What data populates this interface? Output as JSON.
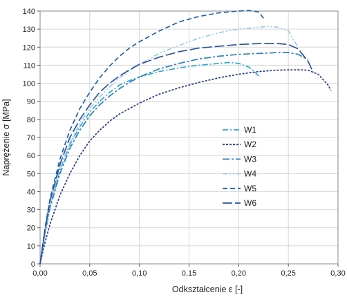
{
  "chart_data": {
    "type": "line",
    "xlabel": "Odkształcenie ε [-]",
    "ylabel": "Naprężenie σ [MPa]",
    "xlim": [
      0,
      0.3
    ],
    "ylim": [
      0,
      140
    ],
    "x_ticks": [
      "0,00",
      "0,05",
      "0,10",
      "0,15",
      "0,20",
      "0,25",
      "0,30"
    ],
    "y_ticks": [
      "0",
      "10",
      "20",
      "30",
      "40",
      "50",
      "60",
      "70",
      "80",
      "90",
      "100",
      "110",
      "120",
      "130",
      "140"
    ],
    "grid": true,
    "legend_position": "center-right",
    "series": [
      {
        "name": "W1",
        "color": "#29A9D6",
        "dash": "8,3,2,3",
        "points": [
          [
            0,
            0
          ],
          [
            0.005,
            18
          ],
          [
            0.01,
            32
          ],
          [
            0.02,
            52
          ],
          [
            0.03,
            66
          ],
          [
            0.04,
            76
          ],
          [
            0.05,
            84
          ],
          [
            0.06,
            90
          ],
          [
            0.07,
            95
          ],
          [
            0.08,
            99
          ],
          [
            0.09,
            101.5
          ],
          [
            0.1,
            103.5
          ],
          [
            0.12,
            106.5
          ],
          [
            0.14,
            108.5
          ],
          [
            0.16,
            110
          ],
          [
            0.18,
            111
          ],
          [
            0.19,
            111.5
          ],
          [
            0.2,
            111
          ],
          [
            0.21,
            109
          ],
          [
            0.215,
            107
          ],
          [
            0.22,
            104
          ]
        ]
      },
      {
        "name": "W2",
        "color": "#283A8C",
        "dash": "3,2",
        "points": [
          [
            0,
            0
          ],
          [
            0.005,
            12
          ],
          [
            0.01,
            22
          ],
          [
            0.02,
            38
          ],
          [
            0.03,
            50
          ],
          [
            0.04,
            60
          ],
          [
            0.05,
            68
          ],
          [
            0.06,
            74
          ],
          [
            0.07,
            79
          ],
          [
            0.08,
            83
          ],
          [
            0.09,
            86
          ],
          [
            0.1,
            89
          ],
          [
            0.12,
            94
          ],
          [
            0.14,
            97.5
          ],
          [
            0.16,
            100.5
          ],
          [
            0.18,
            103
          ],
          [
            0.2,
            105
          ],
          [
            0.22,
            106.5
          ],
          [
            0.24,
            107.3
          ],
          [
            0.26,
            107.5
          ],
          [
            0.27,
            107.2
          ],
          [
            0.28,
            105
          ],
          [
            0.29,
            99
          ],
          [
            0.293,
            96
          ]
        ]
      },
      {
        "name": "W3",
        "color": "#2E7FC0",
        "dash": "10,3,3,3",
        "points": [
          [
            0,
            0
          ],
          [
            0.005,
            17
          ],
          [
            0.01,
            31
          ],
          [
            0.02,
            50
          ],
          [
            0.03,
            64
          ],
          [
            0.04,
            74
          ],
          [
            0.05,
            82
          ],
          [
            0.06,
            88
          ],
          [
            0.07,
            93
          ],
          [
            0.08,
            97
          ],
          [
            0.09,
            100.5
          ],
          [
            0.1,
            103.5
          ],
          [
            0.12,
            108
          ],
          [
            0.14,
            111
          ],
          [
            0.16,
            113.5
          ],
          [
            0.18,
            115
          ],
          [
            0.2,
            116
          ],
          [
            0.22,
            116.5
          ],
          [
            0.24,
            117
          ],
          [
            0.25,
            117
          ],
          [
            0.26,
            116
          ],
          [
            0.27,
            113
          ]
        ]
      },
      {
        "name": "W4",
        "color": "#9BC9EA",
        "dash": "7,3,2,3,2,3",
        "points": [
          [
            0,
            0
          ],
          [
            0.005,
            18
          ],
          [
            0.01,
            33
          ],
          [
            0.02,
            53
          ],
          [
            0.03,
            67
          ],
          [
            0.04,
            78
          ],
          [
            0.05,
            86
          ],
          [
            0.06,
            92.5
          ],
          [
            0.07,
            98
          ],
          [
            0.08,
            103
          ],
          [
            0.09,
            107
          ],
          [
            0.1,
            110.5
          ],
          [
            0.12,
            116.5
          ],
          [
            0.14,
            121
          ],
          [
            0.16,
            125
          ],
          [
            0.18,
            128
          ],
          [
            0.2,
            130
          ],
          [
            0.22,
            131
          ],
          [
            0.23,
            131.5
          ],
          [
            0.24,
            131
          ],
          [
            0.25,
            129
          ],
          [
            0.255,
            124
          ],
          [
            0.26,
            120
          ]
        ]
      },
      {
        "name": "W5",
        "color": "#1F5FB0",
        "dash": "7,4",
        "points": [
          [
            0,
            0
          ],
          [
            0.005,
            20
          ],
          [
            0.01,
            36
          ],
          [
            0.02,
            58
          ],
          [
            0.03,
            74
          ],
          [
            0.04,
            86
          ],
          [
            0.05,
            95
          ],
          [
            0.06,
            103
          ],
          [
            0.07,
            109.5
          ],
          [
            0.08,
            115
          ],
          [
            0.09,
            119.5
          ],
          [
            0.1,
            123
          ],
          [
            0.12,
            129
          ],
          [
            0.14,
            134
          ],
          [
            0.16,
            137
          ],
          [
            0.18,
            139
          ],
          [
            0.2,
            140
          ],
          [
            0.21,
            140.3
          ],
          [
            0.22,
            139.5
          ],
          [
            0.225,
            136
          ]
        ]
      },
      {
        "name": "W6",
        "color": "#2A52A0",
        "dash": "14,4",
        "points": [
          [
            0,
            0
          ],
          [
            0.005,
            19
          ],
          [
            0.01,
            35
          ],
          [
            0.02,
            55
          ],
          [
            0.03,
            70
          ],
          [
            0.04,
            80
          ],
          [
            0.05,
            88
          ],
          [
            0.06,
            95
          ],
          [
            0.07,
            100
          ],
          [
            0.08,
            104
          ],
          [
            0.09,
            107.5
          ],
          [
            0.1,
            110.5
          ],
          [
            0.12,
            114.5
          ],
          [
            0.14,
            117.5
          ],
          [
            0.16,
            119.5
          ],
          [
            0.18,
            120.5
          ],
          [
            0.2,
            121.5
          ],
          [
            0.22,
            122
          ],
          [
            0.24,
            122
          ],
          [
            0.25,
            121.5
          ],
          [
            0.26,
            119
          ],
          [
            0.27,
            112
          ],
          [
            0.275,
            106
          ]
        ]
      }
    ]
  }
}
